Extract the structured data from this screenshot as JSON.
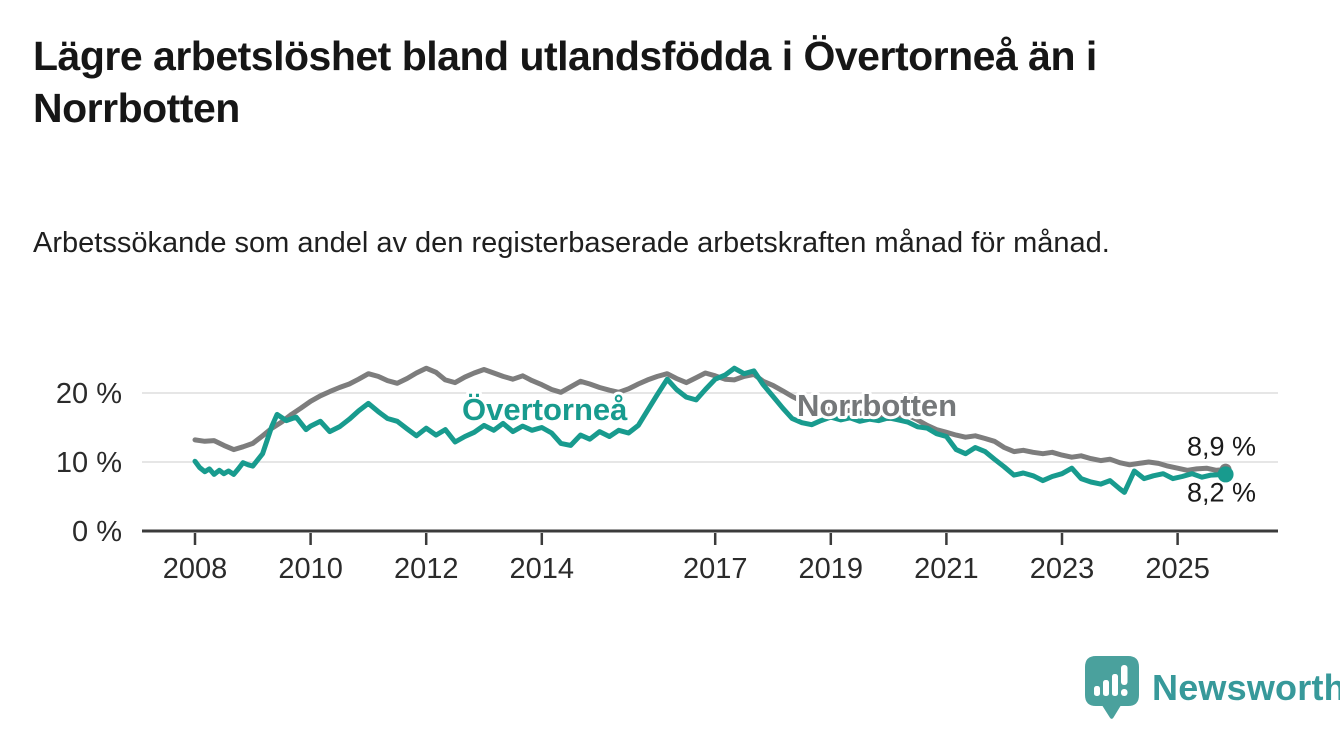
{
  "page": {
    "background": "#ffffff"
  },
  "header": {
    "title": "Lägre arbetslöshet bland utlandsfödda i Övertorneå än i Norrbotten",
    "subtitle": "Arbetssökande som andel av den registerbaserade arbetskraften månad för månad."
  },
  "chart_data": {
    "type": "line",
    "unit": "%",
    "x_range": [
      2008,
      2025.83
    ],
    "ylim": [
      0,
      25
    ],
    "grid": "horizontal",
    "legend_position": "inline-labels",
    "axis_color": "#3b3b3b",
    "grid_color": "#dedede",
    "tick_label_color": "#2b2b2b",
    "end_label_color": "#1a1a1a",
    "y_ticks": [
      {
        "value": 0,
        "label": "0 %"
      },
      {
        "value": 10,
        "label": "10 %"
      },
      {
        "value": 20,
        "label": "20 %"
      }
    ],
    "x_ticks": [
      {
        "value": 2008,
        "label": "2008"
      },
      {
        "value": 2010,
        "label": "2010"
      },
      {
        "value": 2012,
        "label": "2012"
      },
      {
        "value": 2014,
        "label": "2014"
      },
      {
        "value": 2017,
        "label": "2017"
      },
      {
        "value": 2019,
        "label": "2019"
      },
      {
        "value": 2021,
        "label": "2021"
      },
      {
        "value": 2023,
        "label": "2023"
      },
      {
        "value": 2025,
        "label": "2025"
      }
    ],
    "series": [
      {
        "name": "Norrbotten",
        "color": "#7d7d7d",
        "label_color": "#75787a",
        "end_label": "8,9 %",
        "end_value": 8.9,
        "end_dot_radius": 6,
        "label_pos": {
          "x": 2019.8,
          "y": 16.7
        },
        "points": [
          [
            2008.0,
            13.2
          ],
          [
            2008.17,
            13.0
          ],
          [
            2008.33,
            13.1
          ],
          [
            2008.5,
            12.4
          ],
          [
            2008.67,
            11.8
          ],
          [
            2008.83,
            12.2
          ],
          [
            2009.0,
            12.7
          ],
          [
            2009.17,
            13.8
          ],
          [
            2009.33,
            14.9
          ],
          [
            2009.5,
            15.8
          ],
          [
            2009.67,
            16.9
          ],
          [
            2009.83,
            17.8
          ],
          [
            2010.0,
            18.8
          ],
          [
            2010.17,
            19.6
          ],
          [
            2010.33,
            20.2
          ],
          [
            2010.5,
            20.8
          ],
          [
            2010.67,
            21.3
          ],
          [
            2010.83,
            22.0
          ],
          [
            2011.0,
            22.8
          ],
          [
            2011.17,
            22.4
          ],
          [
            2011.33,
            21.8
          ],
          [
            2011.5,
            21.4
          ],
          [
            2011.67,
            22.1
          ],
          [
            2011.83,
            22.9
          ],
          [
            2012.0,
            23.6
          ],
          [
            2012.17,
            23.0
          ],
          [
            2012.33,
            21.9
          ],
          [
            2012.5,
            21.5
          ],
          [
            2012.67,
            22.3
          ],
          [
            2012.83,
            22.9
          ],
          [
            2013.0,
            23.4
          ],
          [
            2013.17,
            22.9
          ],
          [
            2013.33,
            22.4
          ],
          [
            2013.5,
            22.0
          ],
          [
            2013.67,
            22.5
          ],
          [
            2013.83,
            21.8
          ],
          [
            2014.0,
            21.2
          ],
          [
            2014.17,
            20.5
          ],
          [
            2014.33,
            20.1
          ],
          [
            2014.5,
            20.9
          ],
          [
            2014.67,
            21.7
          ],
          [
            2014.83,
            21.3
          ],
          [
            2015.0,
            20.8
          ],
          [
            2015.17,
            20.4
          ],
          [
            2015.33,
            20.1
          ],
          [
            2015.5,
            20.6
          ],
          [
            2015.67,
            21.3
          ],
          [
            2015.83,
            21.9
          ],
          [
            2016.0,
            22.4
          ],
          [
            2016.17,
            22.8
          ],
          [
            2016.33,
            22.1
          ],
          [
            2016.5,
            21.5
          ],
          [
            2016.67,
            22.2
          ],
          [
            2016.83,
            22.9
          ],
          [
            2017.0,
            22.5
          ],
          [
            2017.17,
            22.0
          ],
          [
            2017.33,
            21.9
          ],
          [
            2017.5,
            22.4
          ],
          [
            2017.67,
            22.7
          ],
          [
            2017.83,
            21.7
          ],
          [
            2018.0,
            21.1
          ],
          [
            2018.17,
            20.3
          ],
          [
            2018.33,
            19.5
          ],
          [
            2018.5,
            18.8
          ],
          [
            2018.67,
            18.2
          ],
          [
            2018.83,
            17.8
          ],
          [
            2019.0,
            17.6
          ],
          [
            2019.17,
            17.3
          ],
          [
            2019.33,
            17.5
          ],
          [
            2019.5,
            17.1
          ],
          [
            2019.67,
            16.8
          ],
          [
            2019.83,
            16.5
          ],
          [
            2020.0,
            16.3
          ],
          [
            2020.17,
            16.6
          ],
          [
            2020.33,
            16.8
          ],
          [
            2020.5,
            16.1
          ],
          [
            2020.67,
            15.3
          ],
          [
            2020.83,
            14.7
          ],
          [
            2021.0,
            14.3
          ],
          [
            2021.17,
            13.9
          ],
          [
            2021.33,
            13.6
          ],
          [
            2021.5,
            13.8
          ],
          [
            2021.67,
            13.4
          ],
          [
            2021.83,
            13.0
          ],
          [
            2022.0,
            12.1
          ],
          [
            2022.17,
            11.5
          ],
          [
            2022.33,
            11.7
          ],
          [
            2022.5,
            11.4
          ],
          [
            2022.67,
            11.2
          ],
          [
            2022.83,
            11.4
          ],
          [
            2023.0,
            11.0
          ],
          [
            2023.17,
            10.7
          ],
          [
            2023.33,
            10.9
          ],
          [
            2023.5,
            10.5
          ],
          [
            2023.67,
            10.2
          ],
          [
            2023.83,
            10.4
          ],
          [
            2024.0,
            9.9
          ],
          [
            2024.17,
            9.6
          ],
          [
            2024.33,
            9.8
          ],
          [
            2024.5,
            10.0
          ],
          [
            2024.67,
            9.8
          ],
          [
            2024.83,
            9.4
          ],
          [
            2025.0,
            9.1
          ],
          [
            2025.17,
            8.8
          ],
          [
            2025.33,
            9.0
          ],
          [
            2025.5,
            9.1
          ],
          [
            2025.67,
            8.8
          ],
          [
            2025.83,
            8.9
          ]
        ]
      },
      {
        "name": "Övertorneå",
        "color": "#189b8e",
        "label_color": "#189b8e",
        "end_label": "8,2 %",
        "end_value": 8.2,
        "end_dot_radius": 8,
        "label_pos": {
          "x": 2014.05,
          "y": 16.1
        },
        "points": [
          [
            2008.0,
            10.1
          ],
          [
            2008.08,
            9.2
          ],
          [
            2008.17,
            8.6
          ],
          [
            2008.25,
            9.0
          ],
          [
            2008.33,
            8.2
          ],
          [
            2008.42,
            8.8
          ],
          [
            2008.5,
            8.3
          ],
          [
            2008.58,
            8.7
          ],
          [
            2008.67,
            8.2
          ],
          [
            2008.75,
            9.0
          ],
          [
            2008.83,
            9.9
          ],
          [
            2008.92,
            9.6
          ],
          [
            2009.0,
            9.4
          ],
          [
            2009.17,
            11.2
          ],
          [
            2009.33,
            15.2
          ],
          [
            2009.42,
            16.9
          ],
          [
            2009.58,
            16.0
          ],
          [
            2009.75,
            16.5
          ],
          [
            2009.92,
            14.7
          ],
          [
            2010.0,
            15.2
          ],
          [
            2010.17,
            15.9
          ],
          [
            2010.33,
            14.4
          ],
          [
            2010.5,
            15.1
          ],
          [
            2010.67,
            16.2
          ],
          [
            2010.83,
            17.4
          ],
          [
            2011.0,
            18.5
          ],
          [
            2011.17,
            17.3
          ],
          [
            2011.33,
            16.3
          ],
          [
            2011.5,
            15.9
          ],
          [
            2011.67,
            14.8
          ],
          [
            2011.83,
            13.8
          ],
          [
            2012.0,
            14.9
          ],
          [
            2012.17,
            13.9
          ],
          [
            2012.33,
            14.7
          ],
          [
            2012.5,
            12.9
          ],
          [
            2012.67,
            13.7
          ],
          [
            2012.83,
            14.3
          ],
          [
            2013.0,
            15.3
          ],
          [
            2013.17,
            14.6
          ],
          [
            2013.33,
            15.6
          ],
          [
            2013.5,
            14.4
          ],
          [
            2013.67,
            15.2
          ],
          [
            2013.83,
            14.6
          ],
          [
            2014.0,
            15.0
          ],
          [
            2014.17,
            14.2
          ],
          [
            2014.33,
            12.7
          ],
          [
            2014.5,
            12.4
          ],
          [
            2014.67,
            13.9
          ],
          [
            2014.83,
            13.3
          ],
          [
            2015.0,
            14.4
          ],
          [
            2015.17,
            13.7
          ],
          [
            2015.33,
            14.6
          ],
          [
            2015.5,
            14.2
          ],
          [
            2015.67,
            15.3
          ],
          [
            2015.83,
            17.5
          ],
          [
            2016.0,
            19.8
          ],
          [
            2016.17,
            22.0
          ],
          [
            2016.33,
            20.5
          ],
          [
            2016.5,
            19.4
          ],
          [
            2016.67,
            19.0
          ],
          [
            2016.83,
            20.5
          ],
          [
            2017.0,
            22.0
          ],
          [
            2017.17,
            22.6
          ],
          [
            2017.33,
            23.6
          ],
          [
            2017.5,
            22.8
          ],
          [
            2017.67,
            23.2
          ],
          [
            2017.83,
            21.2
          ],
          [
            2018.0,
            19.5
          ],
          [
            2018.17,
            17.8
          ],
          [
            2018.33,
            16.3
          ],
          [
            2018.5,
            15.7
          ],
          [
            2018.67,
            15.4
          ],
          [
            2018.83,
            16.0
          ],
          [
            2019.0,
            16.5
          ],
          [
            2019.17,
            16.1
          ],
          [
            2019.33,
            16.4
          ],
          [
            2019.5,
            15.9
          ],
          [
            2019.67,
            16.2
          ],
          [
            2019.83,
            16.0
          ],
          [
            2020.0,
            16.4
          ],
          [
            2020.17,
            16.1
          ],
          [
            2020.33,
            15.8
          ],
          [
            2020.5,
            15.1
          ],
          [
            2020.67,
            14.9
          ],
          [
            2020.83,
            14.1
          ],
          [
            2021.0,
            13.7
          ],
          [
            2021.17,
            11.8
          ],
          [
            2021.33,
            11.2
          ],
          [
            2021.5,
            12.1
          ],
          [
            2021.67,
            11.5
          ],
          [
            2021.83,
            10.4
          ],
          [
            2022.0,
            9.3
          ],
          [
            2022.17,
            8.1
          ],
          [
            2022.33,
            8.4
          ],
          [
            2022.5,
            8.0
          ],
          [
            2022.67,
            7.3
          ],
          [
            2022.83,
            7.9
          ],
          [
            2023.0,
            8.3
          ],
          [
            2023.17,
            9.1
          ],
          [
            2023.33,
            7.6
          ],
          [
            2023.5,
            7.1
          ],
          [
            2023.67,
            6.8
          ],
          [
            2023.83,
            7.3
          ],
          [
            2024.0,
            6.1
          ],
          [
            2024.08,
            5.6
          ],
          [
            2024.25,
            8.7
          ],
          [
            2024.42,
            7.6
          ],
          [
            2024.58,
            8.0
          ],
          [
            2024.75,
            8.3
          ],
          [
            2024.92,
            7.6
          ],
          [
            2025.08,
            7.9
          ],
          [
            2025.25,
            8.3
          ],
          [
            2025.42,
            7.8
          ],
          [
            2025.58,
            8.1
          ],
          [
            2025.83,
            8.2
          ]
        ]
      }
    ]
  },
  "footer": {
    "brand": "Newsworthy",
    "logo_icon": "speech-bubble-bar-chart-icon",
    "icon_color": "#4aa19d",
    "brand_color": "#37999a"
  }
}
